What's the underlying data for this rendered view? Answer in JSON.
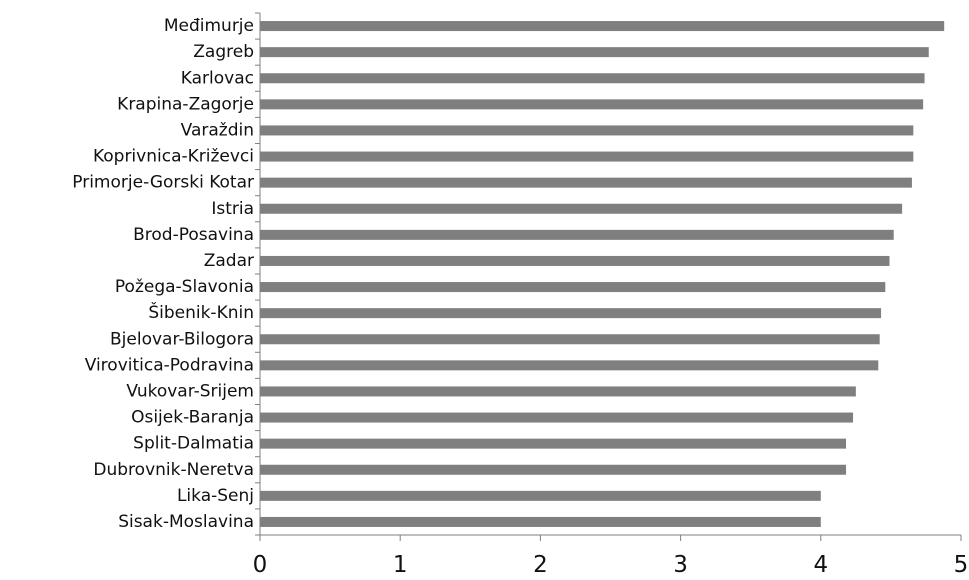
{
  "chart_data": {
    "type": "bar",
    "orientation": "horizontal",
    "categories": [
      "Međimurje",
      "Zagreb",
      "Karlovac",
      "Krapina-Zagorje",
      "Varaždin",
      "Koprivnica-Križevci",
      "Primorje-Gorski Kotar",
      "Istria",
      "Brod-Posavina",
      "Zadar",
      "Požega-Slavonia",
      "Šibenik-Knin",
      "Bjelovar-Bilogora",
      "Virovitica-Podravina",
      "Vukovar-Srijem",
      "Osijek-Baranja",
      "Split-Dalmatia",
      "Dubrovnik-Neretva",
      "Lika-Senj",
      "Sisak-Moslavina"
    ],
    "values": [
      4.88,
      4.77,
      4.74,
      4.73,
      4.66,
      4.66,
      4.65,
      4.58,
      4.52,
      4.49,
      4.46,
      4.43,
      4.42,
      4.41,
      4.25,
      4.23,
      4.18,
      4.18,
      4.0,
      4.0
    ],
    "xlim": [
      0,
      5
    ],
    "xticks": [
      "0",
      "1",
      "2",
      "3",
      "4",
      "5"
    ],
    "title": "",
    "xlabel": "",
    "ylabel": "",
    "grid": false,
    "legend": "none",
    "bar_color": "#7f7f7f"
  }
}
